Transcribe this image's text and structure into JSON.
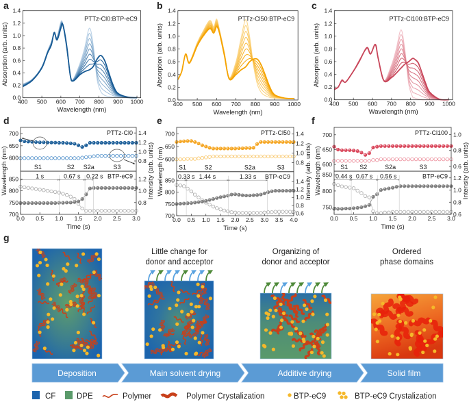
{
  "panel_g": {
    "letter": "g",
    "captions": [
      [],
      [
        "Little change for",
        "donor and acceptor"
      ],
      [
        "Organizing of",
        "donor and acceptor"
      ],
      [
        "Ordered",
        "phase domains"
      ]
    ],
    "steps": [
      "Deposition",
      "Main solvent drying",
      "Additive drying",
      "Solid film"
    ],
    "legend": [
      "CF",
      "DPE",
      "Polymer",
      "Polymer  Crystalization",
      "BTP-eC9",
      "BTP-eC9 Crystalization"
    ],
    "colors": {
      "CF": "#1c64ad",
      "DPE": "#5a9a6a",
      "polymer": "#c8401a",
      "btp": "#f5b82a",
      "step": "#5b9bd5",
      "arrow_cf": "#5ba3e0",
      "arrow_dpe": "#4f8a3a"
    }
  },
  "chart_data": [
    {
      "type": "line",
      "letter": "a",
      "annotation": "PTTz-Cl0:BTP-eC9",
      "xlabel": "Wavelength (nm)",
      "ylabel": "Absorption (arb. units)",
      "xlim": [
        400,
        1020
      ],
      "ylim": [
        0,
        1.4
      ],
      "xticks": [
        "400",
        "500",
        "600",
        "700",
        "800",
        "900",
        "1000"
      ],
      "yticks": [
        "0.0",
        "0.2",
        "0.4",
        "0.6",
        "0.8",
        "1.0",
        "1.2",
        "1.4"
      ],
      "colors": {
        "initial": "#bcd3e8",
        "final": "#175a94"
      },
      "x": [
        400,
        450,
        500,
        530,
        550,
        565,
        580,
        600,
        610,
        630,
        650,
        665,
        700,
        725,
        750,
        770,
        790,
        810,
        830,
        850,
        875,
        900,
        950,
        1000
      ],
      "series": [
        {
          "values": [
            0.22,
            0.3,
            0.5,
            0.75,
            0.9,
            1.02,
            0.98,
            1.22,
            1.18,
            0.8,
            0.35,
            0.3,
            0.55,
            0.8,
            1.12,
            0.85,
            0.3,
            0.1,
            0.04,
            0.02,
            0.01,
            0.01,
            0.0,
            0.0
          ]
        },
        {
          "values": [
            0.18,
            0.28,
            0.48,
            0.72,
            0.85,
            1.05,
            0.93,
            1.12,
            1.18,
            0.85,
            0.35,
            0.27,
            0.37,
            0.42,
            0.45,
            0.5,
            0.62,
            0.68,
            0.6,
            0.42,
            0.2,
            0.07,
            0.01,
            0.0
          ]
        }
      ]
    },
    {
      "type": "line",
      "letter": "b",
      "annotation": "PTTz-Cl50:BTP-eC9",
      "xlabel": "Wavelength (nm)",
      "ylabel": "Absorption (arb. units)",
      "xlim": [
        400,
        1020
      ],
      "ylim": [
        0,
        1.4
      ],
      "xticks": [
        "400",
        "500",
        "600",
        "700",
        "800",
        "900",
        "1000"
      ],
      "yticks": [
        "0.0",
        "0.2",
        "0.4",
        "0.6",
        "0.8",
        "1.0",
        "1.2",
        "1.4"
      ],
      "colors": {
        "initial": "#fcd98f",
        "final": "#f5a300"
      },
      "x": [
        400,
        420,
        440,
        460,
        500,
        530,
        565,
        585,
        600,
        615,
        640,
        665,
        700,
        725,
        750,
        770,
        790,
        810,
        830,
        850,
        875,
        900,
        950,
        1000
      ],
      "series": [
        {
          "values": [
            0.32,
            0.45,
            0.72,
            0.6,
            0.9,
            1.08,
            1.25,
            1.15,
            1.27,
            1.1,
            0.75,
            0.35,
            0.6,
            0.95,
            1.26,
            1.0,
            0.55,
            0.25,
            0.12,
            0.07,
            0.04,
            0.03,
            0.02,
            0.02
          ]
        },
        {
          "values": [
            0.32,
            0.45,
            0.72,
            0.58,
            0.85,
            1.0,
            1.12,
            1.05,
            1.15,
            1.05,
            0.7,
            0.33,
            0.4,
            0.47,
            0.52,
            0.6,
            0.64,
            0.64,
            0.55,
            0.4,
            0.2,
            0.08,
            0.03,
            0.02
          ]
        }
      ]
    },
    {
      "type": "line",
      "letter": "c",
      "annotation": "PTTz-Cl100:BTP-eC9",
      "xlabel": "Wavelength (nm)",
      "ylabel": "Absorption (arb. units)",
      "xlim": [
        400,
        1020
      ],
      "ylim": [
        0,
        1.4
      ],
      "xticks": [
        "400",
        "500",
        "600",
        "700",
        "800",
        "900",
        "1000"
      ],
      "yticks": [
        "0.0",
        "0.2",
        "0.4",
        "0.6",
        "0.8",
        "1.0",
        "1.2",
        "1.4"
      ],
      "colors": {
        "initial": "#f2c2ca",
        "final": "#c8465a"
      },
      "x": [
        400,
        420,
        440,
        460,
        500,
        530,
        570,
        590,
        615,
        630,
        660,
        700,
        725,
        750,
        770,
        790,
        810,
        820,
        840,
        860,
        880,
        900,
        950,
        1000
      ],
      "series": [
        {
          "values": [
            0.18,
            0.2,
            0.32,
            0.28,
            0.45,
            0.62,
            0.8,
            0.72,
            0.86,
            0.65,
            0.3,
            0.55,
            0.8,
            1.1,
            0.78,
            0.25,
            0.05,
            0.03,
            0.01,
            0.0,
            0.0,
            0.0,
            0.0,
            0.0
          ]
        },
        {
          "values": [
            0.16,
            0.2,
            0.3,
            0.28,
            0.45,
            0.6,
            0.82,
            0.72,
            0.87,
            0.65,
            0.3,
            0.35,
            0.42,
            0.5,
            0.56,
            0.6,
            0.65,
            0.64,
            0.58,
            0.42,
            0.25,
            0.12,
            0.01,
            0.0
          ]
        }
      ]
    },
    {
      "type": "scatter",
      "letter": "d",
      "annotation": "PTTz-Cl0",
      "acceptor": "BTP-eC9",
      "xlabel": "Time (s)",
      "ylabel": "Wavelength (nm)",
      "y2label": "Intensity (arb. units)",
      "xlim": [
        0,
        3
      ],
      "xticks": [
        "0.0",
        "0.5",
        "1.0",
        "1.5",
        "2.0",
        "2.5",
        "3.0"
      ],
      "dt": 0.1,
      "stages": [
        "S1",
        "S2",
        "S2a",
        "S3"
      ],
      "boundaries": [
        0,
        1.0,
        1.67,
        1.89
      ],
      "durations": [
        "1 s",
        "0.67 s",
        "0.22 s"
      ],
      "colors": {
        "filled": "#1d5f99",
        "open": "#4a8cc8",
        "acceptor_filled": "#7d7d7d",
        "acceptor_open": "#a8a8a8"
      },
      "top": {
        "ylim": [
          546,
          725
        ],
        "y2lim": [
          0.58,
          1.52
        ],
        "yticks": [
          "600",
          "650",
          "700"
        ],
        "y2ticks": [
          "0.8",
          "1.0",
          "1.2",
          "1.4"
        ],
        "wavelength": [
          672,
          668,
          667,
          666,
          665,
          664,
          664,
          663,
          663,
          663,
          662,
          662,
          661,
          660,
          658,
          652,
          645,
          652,
          662,
          662,
          662,
          662,
          662,
          662,
          662,
          662,
          662,
          662,
          662,
          662,
          662
        ],
        "intensity": [
          0.86,
          0.86,
          0.86,
          0.86,
          0.86,
          0.86,
          0.86,
          0.86,
          0.86,
          0.86,
          0.86,
          0.86,
          0.86,
          0.86,
          0.86,
          0.86,
          0.87,
          0.88,
          0.89,
          0.9,
          0.91,
          0.91,
          0.91,
          0.91,
          0.91,
          0.91,
          0.91,
          0.91,
          0.91,
          0.91,
          0.91
        ]
      },
      "bottom": {
        "ylim": [
          700,
          883
        ],
        "y2lim": [
          0.6,
          1.332
        ],
        "yticks": [
          "700",
          "750",
          "800",
          "850"
        ],
        "y2ticks": [
          "0.8",
          "1.0",
          "1.2"
        ],
        "wavelength": [
          748,
          748,
          748,
          748,
          748,
          748,
          748,
          748,
          748,
          748,
          749,
          749,
          750,
          750,
          752,
          755,
          765,
          785,
          810,
          812,
          812,
          812,
          812,
          812,
          812,
          812,
          812,
          812,
          812,
          812,
          812
        ],
        "intensity": [
          1.07,
          1.06,
          1.05,
          1.04,
          1.03,
          1.02,
          1.01,
          1.0,
          0.99,
          0.98,
          0.97,
          0.95,
          0.93,
          0.9,
          0.86,
          0.78,
          0.7,
          0.66,
          0.66,
          0.66,
          0.66,
          0.66,
          0.66,
          0.66,
          0.66,
          0.66,
          0.66,
          0.66,
          0.66,
          0.66,
          0.66
        ]
      }
    },
    {
      "type": "scatter",
      "letter": "e",
      "annotation": "PTTz-Cl50",
      "acceptor": "BTP-eC9",
      "xlabel": "Time (s)",
      "ylabel": "Wavelength (nm)",
      "y2label": "Intensity (arb. units)",
      "xlim": [
        0,
        4
      ],
      "xticks": [
        "0.0",
        "0.5",
        "1.0",
        "1.5",
        "2.0",
        "2.5",
        "3.0",
        "3.5",
        "4.0"
      ],
      "dt": 0.125,
      "stages": [
        "S1",
        "S2",
        "S2a",
        "S3"
      ],
      "boundaries": [
        0,
        0.33,
        1.77,
        3.1
      ],
      "durations": [
        "0.33 s",
        "1.44 s",
        "1.33 s"
      ],
      "colors": {
        "filled": "#f5a623",
        "open": "#f8c566",
        "acceptor_filled": "#7d7d7d",
        "acceptor_open": "#a8a8a8"
      },
      "top": {
        "ylim": [
          550,
          726
        ],
        "y2lim": [
          0.61,
          1.54
        ],
        "yticks": [
          "600",
          "650",
          "700"
        ],
        "y2ticks": [
          "0.8",
          "1.0",
          "1.2",
          "1.4"
        ],
        "wavelength": [
          668,
          670,
          671,
          672,
          672,
          668,
          662,
          655,
          650,
          645,
          642,
          642,
          642,
          642,
          642,
          642,
          642,
          643,
          643,
          644,
          644,
          645,
          660,
          668,
          668,
          668,
          668,
          668,
          668,
          668,
          668,
          668,
          668
        ],
        "intensity": [
          0.87,
          0.87,
          0.87,
          0.88,
          0.88,
          0.88,
          0.89,
          0.9,
          0.91,
          0.92,
          0.93,
          0.93,
          0.93,
          0.93,
          0.93,
          0.93,
          0.93,
          0.93,
          0.93,
          0.93,
          0.93,
          0.93,
          0.93,
          0.93,
          0.93,
          0.93,
          0.93,
          0.93,
          0.93,
          0.93,
          0.93,
          0.93,
          0.93
        ]
      },
      "bottom": {
        "ylim": [
          700,
          887
        ],
        "y2lim": [
          0.54,
          1.645
        ],
        "yticks": [
          "700",
          "750",
          "800",
          "850"
        ],
        "y2ticks": [
          "0.6",
          "0.8",
          "1.0",
          "1.2",
          "1.4"
        ],
        "wavelength": [
          750,
          751,
          752,
          753,
          754,
          756,
          758,
          760,
          763,
          767,
          771,
          775,
          779,
          782,
          785,
          790,
          791,
          789,
          787,
          786,
          786,
          787,
          788,
          790,
          795,
          800,
          804,
          806,
          806,
          806,
          806,
          806,
          806
        ],
        "intensity": [
          1.31,
          1.3,
          1.28,
          1.22,
          1.15,
          1.07,
          1.0,
          0.93,
          0.87,
          0.82,
          0.77,
          0.73,
          0.7,
          0.67,
          0.65,
          0.63,
          0.62,
          0.61,
          0.61,
          0.61,
          0.61,
          0.61,
          0.61,
          0.61,
          0.62,
          0.63,
          0.63,
          0.64,
          0.64,
          0.64,
          0.64,
          0.64,
          0.64
        ]
      }
    },
    {
      "type": "scatter",
      "letter": "f",
      "annotation": "PTTz-Cl100",
      "acceptor": "BTP-eC9",
      "xlabel": "Time (s)",
      "ylabel": "Wavelength (nm)",
      "y2label": "Intensity (arb. units)",
      "xlim": [
        0,
        3
      ],
      "xticks": [
        "0.0",
        "0.5",
        "1.0",
        "1.5",
        "2.0",
        "2.5",
        "3.0"
      ],
      "dt": 0.1,
      "stages": [
        "S1",
        "S2",
        "S2a",
        "S3"
      ],
      "boundaries": [
        0,
        0.44,
        1.11,
        1.67
      ],
      "durations": [
        "0.44 s",
        "0.67 s",
        "0.56 s"
      ],
      "colors": {
        "filled": "#d9475b",
        "open": "#ec8f9c",
        "acceptor_filled": "#7d7d7d",
        "acceptor_open": "#a8a8a8"
      },
      "top": {
        "ylim": [
          577,
          725
        ],
        "y2lim": [
          0.54,
          1.09
        ],
        "yticks": [
          "600",
          "650",
          "700"
        ],
        "y2ticks": [
          "0.6",
          "0.8",
          "1.0"
        ],
        "wavelength": [
          660,
          650,
          648,
          648,
          648,
          647,
          645,
          640,
          632,
          638,
          657,
          660,
          662,
          662,
          662,
          662,
          662,
          662,
          662,
          662,
          662,
          662,
          662,
          662,
          662,
          662,
          662,
          662,
          662,
          662,
          662
        ],
        "intensity": [
          0.67,
          0.67,
          0.67,
          0.67,
          0.67,
          0.67,
          0.67,
          0.67,
          0.67,
          0.67,
          0.68,
          0.68,
          0.69,
          0.69,
          0.69,
          0.69,
          0.69,
          0.69,
          0.69,
          0.69,
          0.69,
          0.69,
          0.69,
          0.69,
          0.69,
          0.69,
          0.69,
          0.69,
          0.69,
          0.69,
          0.69
        ]
      },
      "bottom": {
        "ylim": [
          728,
          861
        ],
        "y2lim": [
          0.6,
          1.31
        ],
        "yticks": [
          "750",
          "800",
          "850"
        ],
        "y2ticks": [
          "0.6",
          "0.8",
          "1.0",
          "1.2"
        ],
        "wavelength": [
          745,
          745,
          745,
          746,
          746,
          747,
          748,
          750,
          753,
          757,
          782,
          790,
          803,
          806,
          808,
          810,
          813,
          815,
          815,
          815,
          815,
          815,
          815,
          815,
          815,
          815,
          815,
          815,
          815,
          815,
          815
        ],
        "intensity": [
          1.1,
          1.08,
          1.06,
          1.05,
          1.04,
          1.03,
          0.99,
          0.95,
          0.9,
          0.88,
          0.65,
          0.62,
          0.62,
          0.63,
          0.63,
          0.64,
          0.64,
          0.64,
          0.64,
          0.64,
          0.64,
          0.64,
          0.64,
          0.64,
          0.64,
          0.64,
          0.64,
          0.64,
          0.64,
          0.64,
          0.64
        ]
      }
    }
  ]
}
